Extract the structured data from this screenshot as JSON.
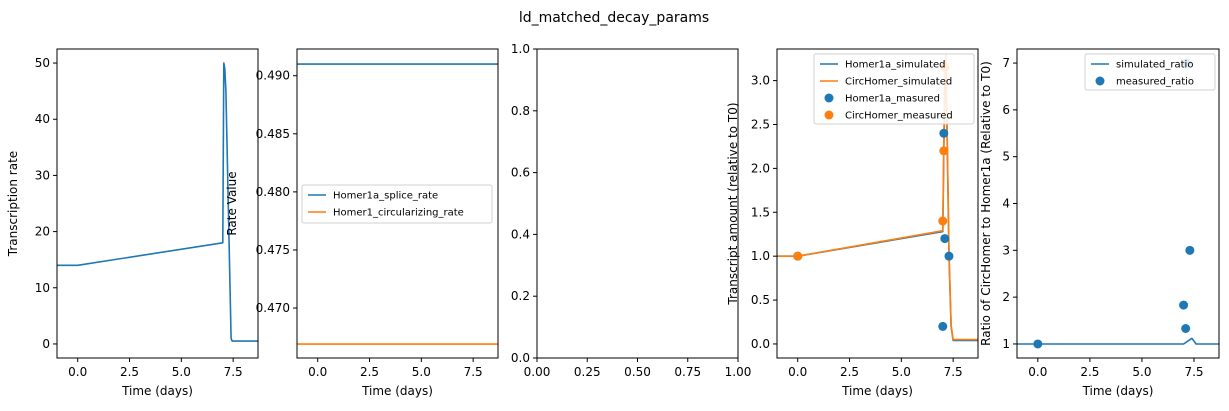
{
  "figure": {
    "title": "ld_matched_decay_params"
  },
  "colors": {
    "blue": "#1f77b4",
    "orange": "#ff7f0e"
  },
  "chart_data": [
    {
      "type": "line",
      "xlabel": "Time (days)",
      "ylabel": "Transcription rate",
      "xlim": [
        -1,
        8.7
      ],
      "ylim": [
        -2.5,
        52.5
      ],
      "xticks": [
        0,
        2.5,
        5,
        7.5
      ],
      "xticklabels": [
        "0.0",
        "2.5",
        "5.0",
        "7.5"
      ],
      "yticks": [
        0,
        10,
        20,
        30,
        40,
        50
      ],
      "yticklabels": [
        "0",
        "10",
        "20",
        "30",
        "40",
        "50"
      ],
      "series": [
        {
          "color": "#1f77b4",
          "x": [
            -1,
            0,
            7.0,
            7.05,
            7.1,
            7.15,
            7.4,
            7.45,
            8.7
          ],
          "y": [
            14,
            14,
            18,
            50,
            49,
            45,
            1,
            0.5,
            0.5
          ]
        }
      ]
    },
    {
      "type": "line",
      "xlabel": "Time (days)",
      "ylabel": "Rate Value",
      "xlim": [
        -1,
        8.7
      ],
      "ylim": [
        0.4657,
        0.4923
      ],
      "xticks": [
        0,
        2.5,
        5,
        7.5
      ],
      "xticklabels": [
        "0.0",
        "2.5",
        "5.0",
        "7.5"
      ],
      "yticks": [
        0.47,
        0.475,
        0.48,
        0.485,
        0.49
      ],
      "yticklabels": [
        "0.470",
        "0.475",
        "0.480",
        "0.485",
        "0.490"
      ],
      "legend": {
        "location": "center-left",
        "entries": [
          "Homer1a_splice_rate",
          "Homer1_circularizing_rate"
        ]
      },
      "series": [
        {
          "name": "Homer1a_splice_rate",
          "color": "#1f77b4",
          "x": [
            -1,
            8.7
          ],
          "y": [
            0.491,
            0.491
          ]
        },
        {
          "name": "Homer1_circularizing_rate",
          "color": "#ff7f0e",
          "x": [
            -1,
            8.7
          ],
          "y": [
            0.4669,
            0.4669
          ]
        }
      ]
    },
    {
      "type": "empty",
      "xlim": [
        0,
        1
      ],
      "ylim": [
        0,
        1
      ],
      "xticks": [
        0,
        0.25,
        0.5,
        0.75,
        1
      ],
      "xticklabels": [
        "0.00",
        "0.25",
        "0.50",
        "0.75",
        "1.00"
      ],
      "yticks": [
        0,
        0.2,
        0.4,
        0.6,
        0.8,
        1
      ],
      "yticklabels": [
        "0.0",
        "0.2",
        "0.4",
        "0.6",
        "0.8",
        "1.0"
      ]
    },
    {
      "type": "line",
      "xlabel": "Time (days)",
      "ylabel": "Transcript amount (relative to T0)",
      "xlim": [
        -1,
        8.7
      ],
      "ylim": [
        -0.16,
        3.36
      ],
      "xticks": [
        0,
        2.5,
        5,
        7.5
      ],
      "xticklabels": [
        "0.0",
        "2.5",
        "5.0",
        "7.5"
      ],
      "yticks": [
        0,
        0.5,
        1,
        1.5,
        2,
        2.5,
        3
      ],
      "yticklabels": [
        "0.0",
        "0.5",
        "1.0",
        "1.5",
        "2.0",
        "2.5",
        "3.0"
      ],
      "legend": {
        "location": "top-right",
        "entries": [
          "Homer1a_simulated",
          "CircHomer_simulated",
          "Homer1a_masured",
          "CircHomer_measured"
        ]
      },
      "series": [
        {
          "name": "Homer1a_simulated",
          "color": "#1f77b4",
          "x": [
            -1,
            0,
            7.0,
            7.05,
            7.1,
            7.15,
            7.2,
            7.3,
            7.4,
            7.5,
            8.7
          ],
          "y": [
            1,
            1,
            1.28,
            2.2,
            2.9,
            3.2,
            2.5,
            1.0,
            0.2,
            0.04,
            0.04
          ]
        },
        {
          "name": "CircHomer_simulated",
          "color": "#ff7f0e",
          "x": [
            -1,
            0,
            7.0,
            7.05,
            7.1,
            7.15,
            7.2,
            7.3,
            7.4,
            7.5,
            8.7
          ],
          "y": [
            1,
            1,
            1.29,
            2.3,
            3.0,
            3.3,
            2.6,
            1.05,
            0.22,
            0.05,
            0.05
          ]
        }
      ],
      "points": [
        {
          "name": "Homer1a_masured",
          "color": "#1f77b4",
          "x": [
            0,
            7.0,
            7.05,
            7.1,
            7.3
          ],
          "y": [
            1.0,
            0.2,
            2.4,
            1.2,
            1.0
          ]
        },
        {
          "name": "CircHomer_measured",
          "color": "#ff7f0e",
          "x": [
            0,
            7.0,
            7.05,
            7.1
          ],
          "y": [
            1.0,
            1.4,
            2.2,
            3.15
          ]
        }
      ]
    },
    {
      "type": "line",
      "xlabel": "Time (days)",
      "ylabel": "Ratio of CircHomer to Homer1a (Relative to T0)",
      "xlim": [
        -1,
        8.7
      ],
      "ylim": [
        0.7,
        7.3
      ],
      "xticks": [
        0,
        2.5,
        5,
        7.5
      ],
      "xticklabels": [
        "0.0",
        "2.5",
        "5.0",
        "7.5"
      ],
      "yticks": [
        1,
        2,
        3,
        4,
        5,
        6,
        7
      ],
      "yticklabels": [
        "1",
        "2",
        "3",
        "4",
        "5",
        "6",
        "7"
      ],
      "legend": {
        "location": "top-right",
        "entries": [
          "simulated_ratio",
          "measured_ratio"
        ]
      },
      "series": [
        {
          "name": "simulated_ratio",
          "color": "#1f77b4",
          "x": [
            -1,
            7.0,
            7.4,
            7.6,
            7.8,
            8.7
          ],
          "y": [
            1,
            1,
            1.12,
            1.0,
            1.0,
            1.0
          ]
        }
      ],
      "points": [
        {
          "name": "measured_ratio",
          "color": "#1f77b4",
          "x": [
            0,
            7.0,
            7.1,
            7.15,
            7.3
          ],
          "y": [
            1.0,
            1.83,
            1.33,
            7.0,
            3.0
          ]
        }
      ]
    }
  ]
}
